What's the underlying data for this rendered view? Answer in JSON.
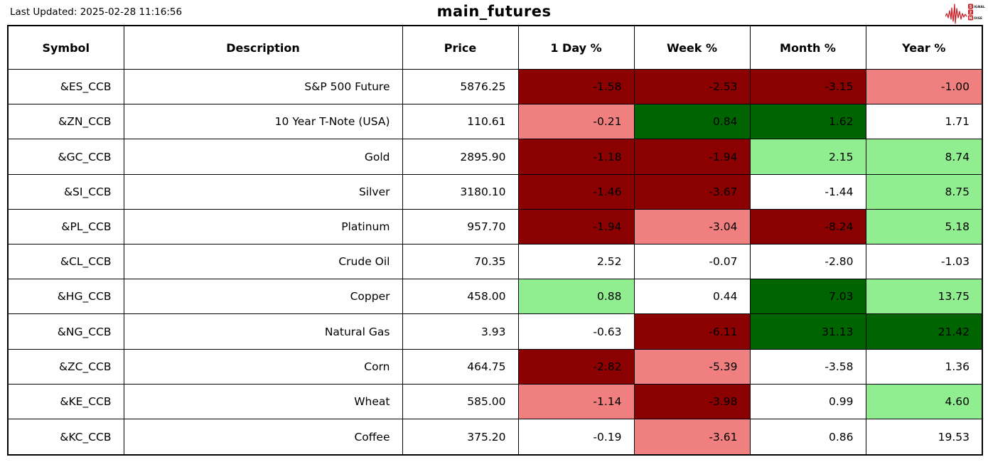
{
  "header": {
    "last_updated": "Last Updated: 2025-02-28 11:16:56",
    "title": "main_futures"
  },
  "logo": {
    "line1_boxed": "S",
    "line1_rest": "IGNAL",
    "line2_boxed": "2",
    "line3_boxed": "N",
    "line3_rest": "OISE"
  },
  "colors": {
    "negative_strong": "#8B0000",
    "negative_mild": "#F08080",
    "positive_strong": "#006400",
    "positive_mild": "#90EE90",
    "neutral": "#FFFFFF",
    "border": "#000000",
    "logo_red": "#CC2229"
  },
  "chart_data": {
    "type": "table",
    "title": "main_futures",
    "columns": [
      {
        "key": "symbol",
        "label": "Symbol"
      },
      {
        "key": "description",
        "label": "Description"
      },
      {
        "key": "price",
        "label": "Price"
      },
      {
        "key": "day",
        "label": "1 Day %"
      },
      {
        "key": "week",
        "label": "Week %"
      },
      {
        "key": "month",
        "label": "Month %"
      },
      {
        "key": "year",
        "label": "Year %"
      }
    ],
    "pct_keys": [
      "day",
      "week",
      "month",
      "year"
    ],
    "rows": [
      {
        "symbol": "&ES_CCB",
        "description": "S&P 500 Future",
        "price": "5876.25",
        "cells": [
          {
            "value": "-1.58",
            "color": "negative_strong"
          },
          {
            "value": "-2.53",
            "color": "negative_strong"
          },
          {
            "value": "-3.15",
            "color": "negative_strong"
          },
          {
            "value": "-1.00",
            "color": "negative_mild"
          }
        ]
      },
      {
        "symbol": "&ZN_CCB",
        "description": "10 Year T-Note (USA)",
        "price": "110.61",
        "cells": [
          {
            "value": "-0.21",
            "color": "negative_mild"
          },
          {
            "value": "0.84",
            "color": "positive_strong"
          },
          {
            "value": "1.62",
            "color": "positive_strong"
          },
          {
            "value": "1.71",
            "color": "neutral"
          }
        ]
      },
      {
        "symbol": "&GC_CCB",
        "description": "Gold",
        "price": "2895.90",
        "cells": [
          {
            "value": "-1.18",
            "color": "negative_strong"
          },
          {
            "value": "-1.94",
            "color": "negative_strong"
          },
          {
            "value": "2.15",
            "color": "positive_mild"
          },
          {
            "value": "8.74",
            "color": "positive_mild"
          }
        ]
      },
      {
        "symbol": "&SI_CCB",
        "description": "Silver",
        "price": "3180.10",
        "cells": [
          {
            "value": "-1.46",
            "color": "negative_strong"
          },
          {
            "value": "-3.67",
            "color": "negative_strong"
          },
          {
            "value": "-1.44",
            "color": "neutral"
          },
          {
            "value": "8.75",
            "color": "positive_mild"
          }
        ]
      },
      {
        "symbol": "&PL_CCB",
        "description": "Platinum",
        "price": "957.70",
        "cells": [
          {
            "value": "-1.94",
            "color": "negative_strong"
          },
          {
            "value": "-3.04",
            "color": "negative_mild"
          },
          {
            "value": "-8.24",
            "color": "negative_strong"
          },
          {
            "value": "5.18",
            "color": "positive_mild"
          }
        ]
      },
      {
        "symbol": "&CL_CCB",
        "description": "Crude Oil",
        "price": "70.35",
        "cells": [
          {
            "value": "2.52",
            "color": "neutral"
          },
          {
            "value": "-0.07",
            "color": "neutral"
          },
          {
            "value": "-2.80",
            "color": "neutral"
          },
          {
            "value": "-1.03",
            "color": "neutral"
          }
        ]
      },
      {
        "symbol": "&HG_CCB",
        "description": "Copper",
        "price": "458.00",
        "cells": [
          {
            "value": "0.88",
            "color": "positive_mild"
          },
          {
            "value": "0.44",
            "color": "neutral"
          },
          {
            "value": "7.03",
            "color": "positive_strong"
          },
          {
            "value": "13.75",
            "color": "positive_mild"
          }
        ]
      },
      {
        "symbol": "&NG_CCB",
        "description": "Natural Gas",
        "price": "3.93",
        "cells": [
          {
            "value": "-0.63",
            "color": "neutral"
          },
          {
            "value": "-6.11",
            "color": "negative_strong"
          },
          {
            "value": "31.13",
            "color": "positive_strong"
          },
          {
            "value": "21.42",
            "color": "positive_strong"
          }
        ]
      },
      {
        "symbol": "&ZC_CCB",
        "description": "Corn",
        "price": "464.75",
        "cells": [
          {
            "value": "-2.82",
            "color": "negative_strong"
          },
          {
            "value": "-5.39",
            "color": "negative_mild"
          },
          {
            "value": "-3.58",
            "color": "neutral"
          },
          {
            "value": "1.36",
            "color": "neutral"
          }
        ]
      },
      {
        "symbol": "&KE_CCB",
        "description": "Wheat",
        "price": "585.00",
        "cells": [
          {
            "value": "-1.14",
            "color": "negative_mild"
          },
          {
            "value": "-3.98",
            "color": "negative_strong"
          },
          {
            "value": "0.99",
            "color": "neutral"
          },
          {
            "value": "4.60",
            "color": "positive_mild"
          }
        ]
      },
      {
        "symbol": "&KC_CCB",
        "description": "Coffee",
        "price": "375.20",
        "cells": [
          {
            "value": "-0.19",
            "color": "neutral"
          },
          {
            "value": "-3.61",
            "color": "negative_mild"
          },
          {
            "value": "0.86",
            "color": "neutral"
          },
          {
            "value": "19.53",
            "color": "neutral"
          }
        ]
      }
    ]
  }
}
